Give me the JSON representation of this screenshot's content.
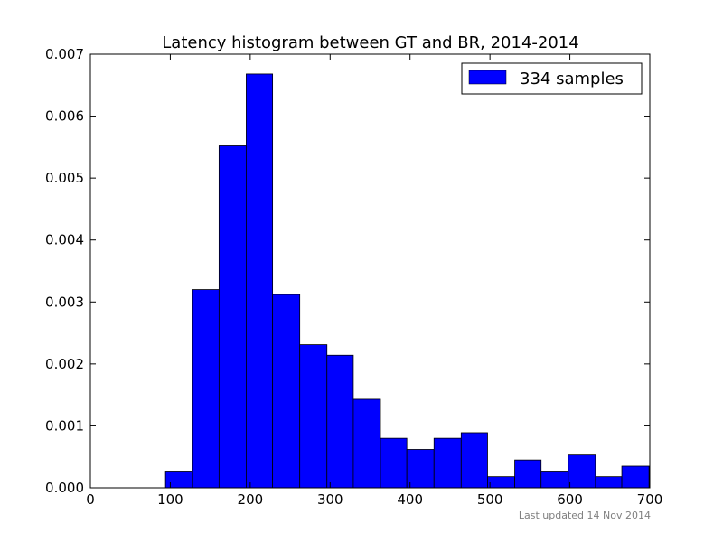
{
  "chart_data": {
    "type": "bar",
    "title": "Latency histogram between GT and BR, 2014-2014",
    "xlabel": "",
    "ylabel": "",
    "xlim": [
      0,
      700
    ],
    "ylim": [
      0,
      0.007
    ],
    "x_ticks": [
      0,
      100,
      200,
      300,
      400,
      500,
      600,
      700
    ],
    "y_ticks": [
      "0.000",
      "0.001",
      "0.002",
      "0.003",
      "0.004",
      "0.005",
      "0.006",
      "0.007"
    ],
    "grid": false,
    "legend_position": "top-right",
    "bin_edges": [
      94,
      128,
      161,
      195,
      228,
      262,
      296,
      329,
      363,
      396,
      430,
      464,
      497,
      531,
      564,
      598,
      632,
      665,
      699
    ],
    "series": [
      {
        "name": "334 samples",
        "color": "#0000ff",
        "values": [
          0.00027,
          0.0032,
          0.00552,
          0.00668,
          0.00312,
          0.00231,
          0.00214,
          0.00143,
          0.0008,
          0.00062,
          0.0008,
          0.00089,
          0.00018,
          0.00045,
          0.00027,
          0.00053,
          0.00018,
          0.00035
        ]
      }
    ],
    "footnote": "Last updated 14 Nov 2014"
  }
}
